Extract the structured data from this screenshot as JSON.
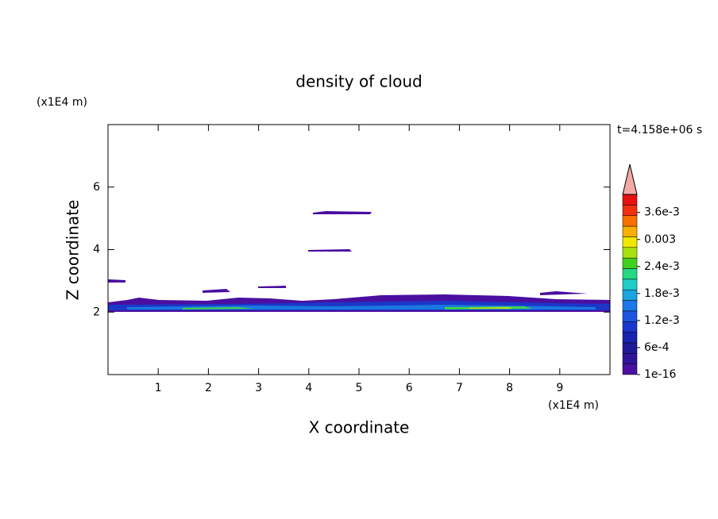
{
  "chart_data": {
    "type": "contour",
    "title": "density of cloud",
    "x_label": "X coordinate",
    "y_label": "Z coordinate",
    "x_unit": "(x1E4 m)",
    "y_unit": "(x1E4 m)",
    "time_label": "t=4.158e+06 s",
    "xlim": [
      0,
      10
    ],
    "ylim": [
      0,
      8
    ],
    "xticks": [
      1,
      2,
      3,
      4,
      5,
      6,
      7,
      8,
      9
    ],
    "yticks": [
      2,
      4,
      6
    ],
    "colorbar": {
      "lim": [
        0,
        0.004
      ],
      "ticks": [
        1e-16,
        {
          "value": 0.0006,
          "label": "6e-4"
        },
        {
          "value": 0.0012,
          "label": "1.2e-3"
        },
        {
          "value": 0.0018,
          "label": "1.8e-3"
        },
        {
          "value": 0.0024,
          "label": "2.4e-3"
        },
        0.003,
        {
          "value": 0.0036,
          "label": "3.6e-3"
        }
      ],
      "colors": [
        "#4a0fa0",
        "#30139a",
        "#1e1a96",
        "#1a22b0",
        "#1a36cc",
        "#1c55e0",
        "#1c78e8",
        "#1aa4e0",
        "#20ccc8",
        "#24d884",
        "#40d020",
        "#a8e010",
        "#f0e800",
        "#f8b000",
        "#f87000",
        "#f03010",
        "#e81010"
      ],
      "extend_color": "#f4a8a8"
    }
  }
}
